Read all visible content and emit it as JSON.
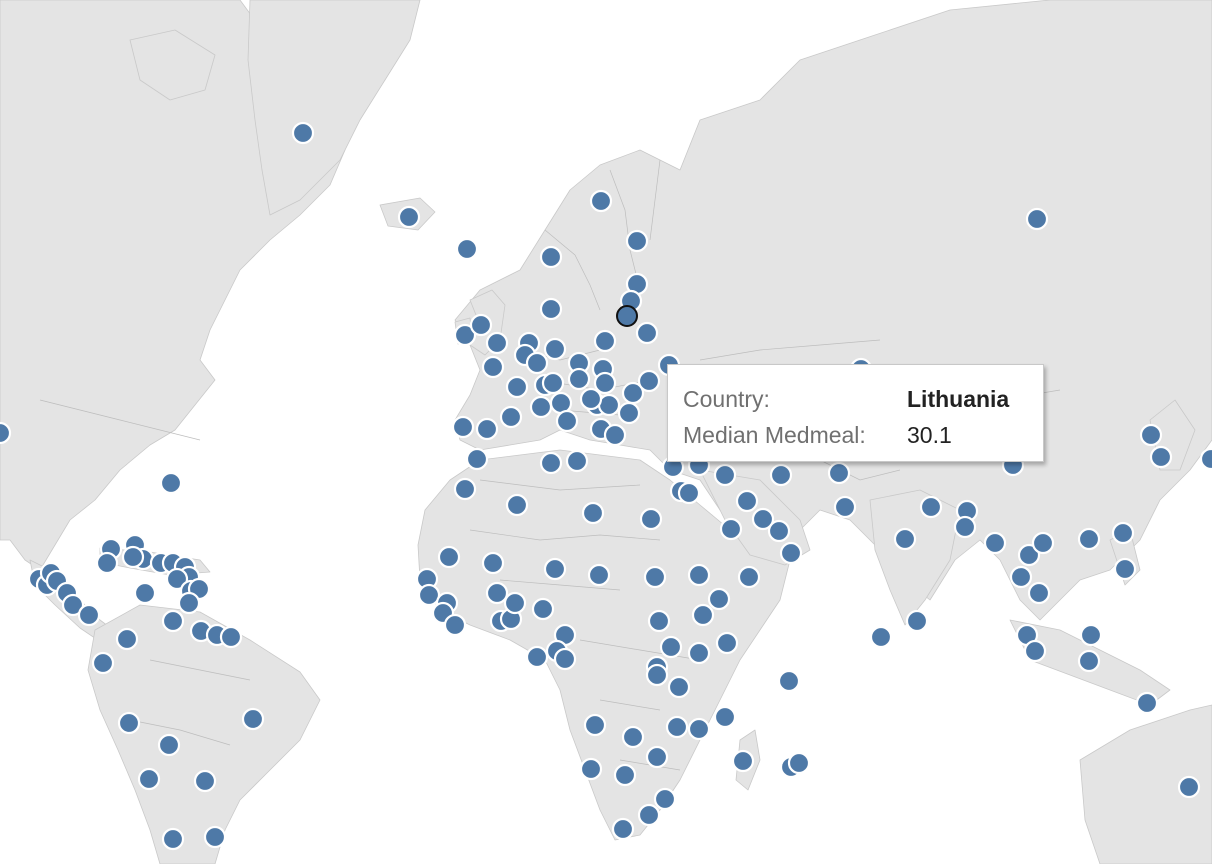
{
  "tooltip": {
    "country_label": "Country:",
    "country_value": "Lithuania",
    "measure_label": "Median Medmeal:",
    "measure_value": "30.1"
  },
  "map": {
    "land_color": "#e4e4e4",
    "border_color": "#c9c9c9",
    "mark_color": "#4e79a7",
    "selected_mark": "Lithuania"
  }
}
